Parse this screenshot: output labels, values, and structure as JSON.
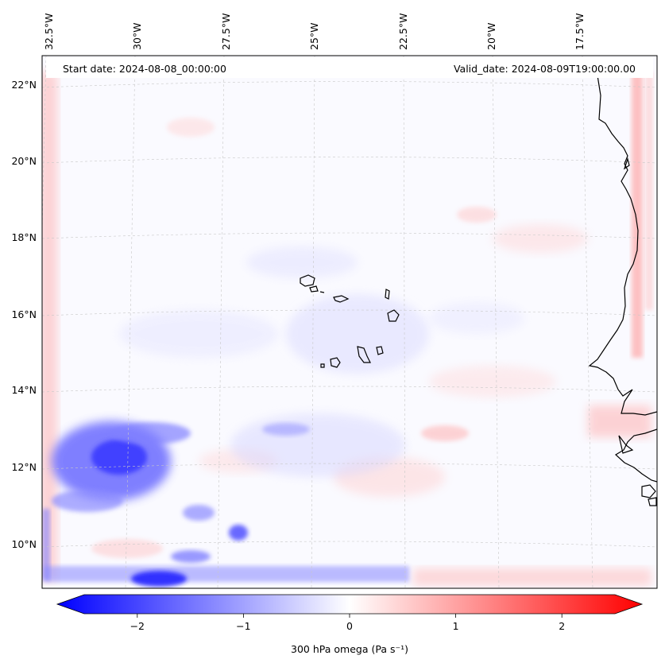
{
  "header": {
    "start_date": "Start date: 2024-08-08_00:00:00",
    "valid_date": "Valid_date: 2024-08-09T19:00:00.00"
  },
  "map": {
    "longitude_labels": [
      "32.5°W",
      "30°W",
      "27.5°W",
      "25°W",
      "22.5°W",
      "20°W",
      "17.5°W"
    ],
    "latitude_labels": [
      "22°N",
      "20°N",
      "18°N",
      "16°N",
      "14°N",
      "12°N",
      "10°N"
    ],
    "field": "300 hPa omega",
    "colors": {
      "negative": "#0000ff",
      "neutral": "#ffffff",
      "positive": "#ff0000",
      "coast": "#000000",
      "grid": "#c8c8c8"
    }
  },
  "colorbar": {
    "label": "300 hPa omega (Pa s⁻¹)",
    "ticks": [
      "−2",
      "−1",
      "0",
      "1",
      "2"
    ],
    "range": [
      -2.6,
      2.6
    ],
    "tick_values": [
      -2,
      -1,
      0,
      1,
      2
    ]
  }
}
